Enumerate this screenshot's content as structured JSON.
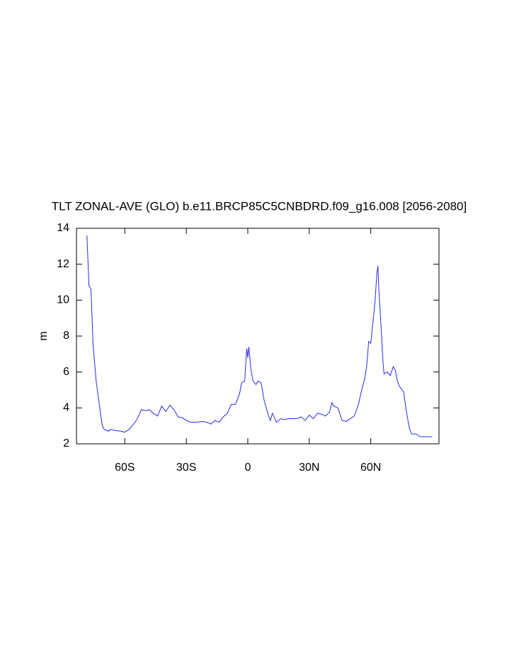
{
  "chart_data": {
    "type": "line",
    "title": "TLT ZONAL-AVE (GLO) b.e11.BRCP85C5CNBDRD.f09_g16.008 [2056-2080]",
    "ylabel": "m",
    "color": "#2a2ae6",
    "xlim": [
      -83.6,
      93.3
    ],
    "ylim": [
      2,
      14
    ],
    "xticks": [
      {
        "value": -60,
        "label": "60S"
      },
      {
        "value": -30,
        "label": "30S"
      },
      0,
      {
        "value": 30,
        "label": "30N"
      },
      {
        "value": 60,
        "label": "60N"
      }
    ],
    "yticks": [
      2,
      4,
      6,
      8,
      10,
      12,
      14
    ],
    "x": [
      -78.5,
      -77.5,
      -76.5,
      -75.5,
      -74,
      -72,
      -71,
      -70,
      -68,
      -67,
      -65,
      -62,
      -60,
      -58,
      -55,
      -53,
      -52,
      -50,
      -48,
      -46,
      -44,
      -42,
      -40,
      -38,
      -36,
      -34,
      -32,
      -30,
      -28,
      -25,
      -22,
      -20,
      -18,
      -16,
      -14,
      -12,
      -10,
      -8,
      -6,
      -4,
      -3,
      -1.5,
      -1,
      -0.5,
      0,
      0.5,
      1.5,
      2.5,
      4,
      5,
      6.5,
      8,
      10,
      11,
      12,
      14,
      16,
      18,
      20,
      24,
      26,
      28,
      30,
      32,
      34,
      36,
      38,
      40,
      41,
      42,
      44,
      46,
      48,
      50,
      52,
      54,
      56,
      57,
      58,
      59,
      60,
      61,
      62,
      63,
      63.5,
      64,
      65,
      66,
      66.5,
      68,
      69.5,
      71,
      72,
      73,
      74,
      76,
      77,
      78,
      79,
      80,
      82,
      84,
      86,
      88,
      90
    ],
    "values": [
      13.6,
      10.8,
      10.6,
      7.5,
      5.5,
      3.8,
      3.0,
      2.8,
      2.7,
      2.8,
      2.75,
      2.7,
      2.65,
      2.8,
      3.2,
      3.6,
      3.9,
      3.85,
      3.9,
      3.7,
      3.55,
      4.1,
      3.8,
      4.15,
      3.9,
      3.5,
      3.45,
      3.3,
      3.2,
      3.2,
      3.25,
      3.2,
      3.1,
      3.3,
      3.2,
      3.5,
      3.7,
      4.2,
      4.2,
      4.8,
      5.4,
      5.5,
      6.5,
      7.3,
      6.8,
      7.4,
      6.2,
      5.5,
      5.3,
      5.5,
      5.4,
      4.4,
      3.6,
      3.3,
      3.7,
      3.2,
      3.4,
      3.35,
      3.4,
      3.4,
      3.5,
      3.3,
      3.6,
      3.4,
      3.7,
      3.65,
      3.55,
      3.8,
      4.3,
      4.1,
      4.0,
      3.3,
      3.25,
      3.4,
      3.55,
      4.2,
      5.2,
      5.6,
      6.3,
      7.7,
      7.6,
      8.7,
      9.8,
      11.5,
      11.9,
      10.5,
      8.6,
      6.5,
      5.9,
      6.0,
      5.8,
      6.3,
      6.1,
      5.5,
      5.2,
      4.9,
      4.1,
      3.4,
      2.8,
      2.55,
      2.55,
      2.4,
      2.4,
      2.4,
      2.4
    ]
  }
}
